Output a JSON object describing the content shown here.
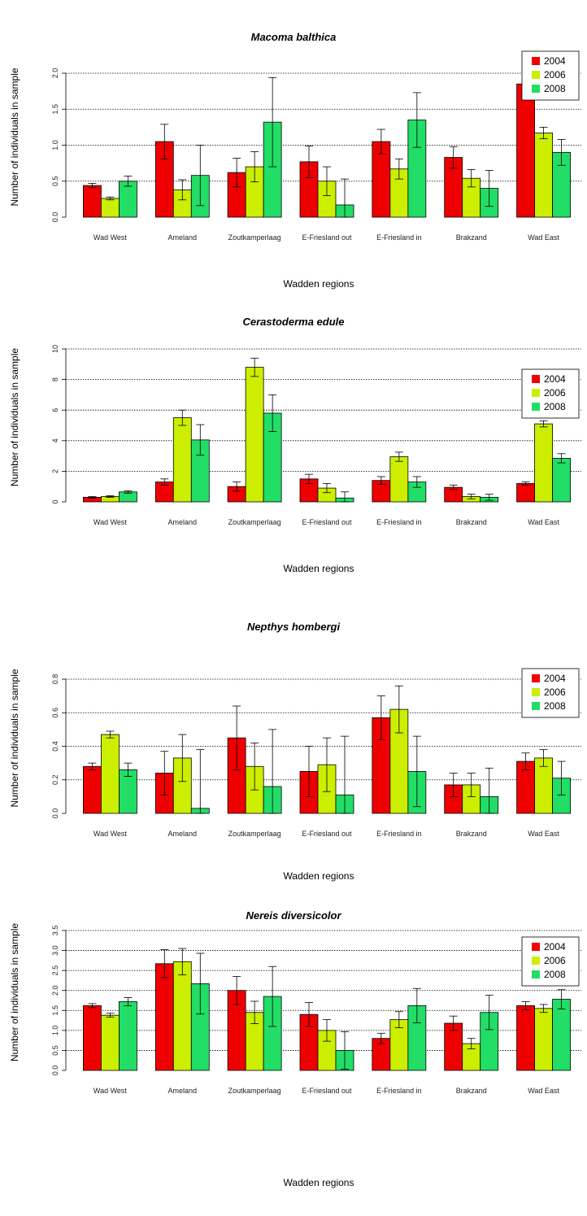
{
  "colors": {
    "2004": "#ee0000",
    "2006": "#ccee00",
    "2008": "#22dd66"
  },
  "chart_data": [
    {
      "type": "bar",
      "title": "Macoma balthica",
      "xlabel": "Wadden regions",
      "ylabel": "Number of individuals in sample",
      "ylim": [
        0,
        2.0
      ],
      "yticks": [
        "0.0",
        "0.5",
        "1.0",
        "1.5",
        "2.0"
      ],
      "grid": true,
      "legend": "top-right",
      "categories": [
        "Wad West",
        "Ameland",
        "Zoutkamperlaag",
        "E-Friesland out",
        "E-Friesland in",
        "Brakzand",
        "Wad East"
      ],
      "series": [
        {
          "name": "2004",
          "values": [
            0.44,
            1.05,
            0.62,
            0.77,
            1.05,
            0.83,
            1.85
          ],
          "errors": [
            0.03,
            0.24,
            0.2,
            0.22,
            0.17,
            0.15,
            0.08
          ]
        },
        {
          "name": "2006",
          "values": [
            0.26,
            0.38,
            0.7,
            0.5,
            0.67,
            0.54,
            1.17
          ],
          "errors": [
            0.02,
            0.14,
            0.21,
            0.2,
            0.14,
            0.12,
            0.08
          ]
        },
        {
          "name": "2008",
          "values": [
            0.5,
            0.58,
            1.32,
            0.17,
            1.35,
            0.4,
            0.9
          ],
          "errors": [
            0.07,
            0.42,
            0.62,
            0.36,
            0.38,
            0.25,
            0.18
          ]
        }
      ]
    },
    {
      "type": "bar",
      "title": "Cerastoderma edule",
      "xlabel": "Wadden regions",
      "ylabel": "Number of individuals in sample",
      "ylim": [
        0,
        10
      ],
      "yticks": [
        "0",
        "2",
        "4",
        "6",
        "8",
        "10"
      ],
      "grid": true,
      "legend": "top-right",
      "categories": [
        "Wad West",
        "Ameland",
        "Zoutkamperlaag",
        "E-Friesland out",
        "E-Friesland in",
        "Brakzand",
        "Wad East"
      ],
      "series": [
        {
          "name": "2004",
          "values": [
            0.3,
            1.3,
            1.0,
            1.5,
            1.4,
            0.95,
            1.2
          ],
          "errors": [
            0.05,
            0.2,
            0.3,
            0.3,
            0.25,
            0.15,
            0.1
          ]
        },
        {
          "name": "2006",
          "values": [
            0.35,
            5.5,
            8.8,
            0.9,
            2.95,
            0.35,
            5.1
          ],
          "errors": [
            0.05,
            0.5,
            0.6,
            0.3,
            0.3,
            0.15,
            0.2
          ]
        },
        {
          "name": "2008",
          "values": [
            0.65,
            4.05,
            5.8,
            0.25,
            1.3,
            0.3,
            2.85
          ],
          "errors": [
            0.08,
            1.0,
            1.2,
            0.4,
            0.35,
            0.2,
            0.3
          ]
        }
      ]
    },
    {
      "type": "bar",
      "title": "Nepthys hombergi",
      "xlabel": "Wadden regions",
      "ylabel": "Number of individuals in sample",
      "ylim": [
        0,
        0.8
      ],
      "yticks": [
        "0.0",
        "0.2",
        "0.4",
        "0.6",
        "0.8"
      ],
      "grid": true,
      "legend": "top-right",
      "categories": [
        "Wad West",
        "Ameland",
        "Zoutkamperlaag",
        "E-Friesland out",
        "E-Friesland in",
        "Brakzand",
        "Wad East"
      ],
      "series": [
        {
          "name": "2004",
          "values": [
            0.28,
            0.24,
            0.45,
            0.25,
            0.57,
            0.17,
            0.31
          ],
          "errors": [
            0.02,
            0.13,
            0.19,
            0.15,
            0.13,
            0.07,
            0.05
          ]
        },
        {
          "name": "2006",
          "values": [
            0.47,
            0.33,
            0.28,
            0.29,
            0.62,
            0.17,
            0.33
          ],
          "errors": [
            0.02,
            0.14,
            0.14,
            0.16,
            0.14,
            0.07,
            0.05
          ]
        },
        {
          "name": "2008",
          "values": [
            0.26,
            0.03,
            0.16,
            0.11,
            0.25,
            0.1,
            0.21
          ],
          "errors": [
            0.04,
            0.35,
            0.34,
            0.35,
            0.21,
            0.17,
            0.1
          ]
        }
      ]
    },
    {
      "type": "bar",
      "title": "Nereis diversicolor",
      "xlabel": "Wadden regions",
      "ylabel": "Number of individuals in sample",
      "ylim": [
        0,
        3.5
      ],
      "yticks": [
        "0.0",
        "0.5",
        "1.0",
        "1.5",
        "2.0",
        "2.5",
        "3.0",
        "3.5"
      ],
      "grid": true,
      "legend": "top-right",
      "categories": [
        "Wad West",
        "Ameland",
        "Zoutkamperlaag",
        "E-Friesland out",
        "E-Friesland in",
        "Brakzand",
        "Wad East"
      ],
      "series": [
        {
          "name": "2004",
          "values": [
            1.62,
            2.67,
            2.0,
            1.4,
            0.8,
            1.18,
            1.62
          ],
          "errors": [
            0.05,
            0.35,
            0.35,
            0.3,
            0.13,
            0.18,
            0.1
          ]
        },
        {
          "name": "2006",
          "values": [
            1.38,
            2.72,
            1.45,
            1.0,
            1.27,
            0.67,
            1.55
          ],
          "errors": [
            0.05,
            0.33,
            0.28,
            0.27,
            0.2,
            0.13,
            0.1
          ]
        },
        {
          "name": "2008",
          "values": [
            1.72,
            2.17,
            1.85,
            0.5,
            1.62,
            1.45,
            1.78
          ],
          "errors": [
            0.1,
            0.76,
            0.75,
            0.47,
            0.43,
            0.43,
            0.24
          ]
        }
      ]
    }
  ]
}
